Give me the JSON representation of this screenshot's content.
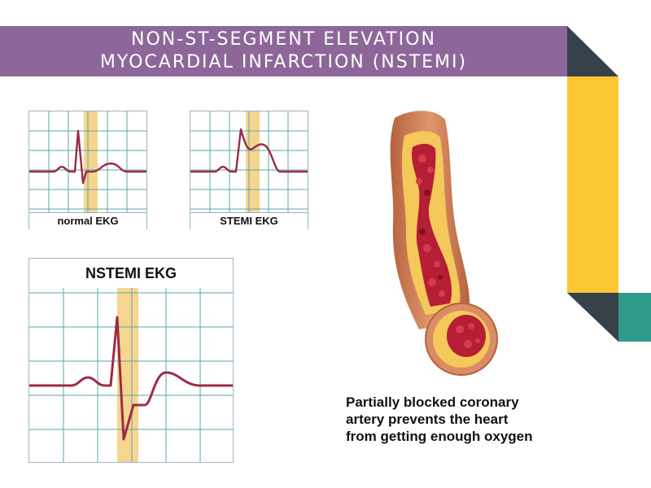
{
  "title": {
    "line1": "NON-ST-SEGMENT ELEVATION",
    "line2": "MYOCARDIAL INFARCTION (NSTEMI)"
  },
  "panels": {
    "normal": {
      "label": "normal EKG"
    },
    "stemi": {
      "label": "STEMI EKG"
    },
    "nstemi": {
      "label": "NSTEMI EKG"
    }
  },
  "caption": {
    "line1": "Partially blocked coronary",
    "line2": "artery prevents the heart",
    "line3": "from getting enough oxygen"
  },
  "colors": {
    "banner": "#8d679a",
    "grid": "#5aa7ae",
    "trace": "#9c2b46",
    "st_highlight": "#f6d58e",
    "deco_dark": "#36414a",
    "deco_yellow": "#fcc632",
    "deco_teal": "#2f9b8a"
  }
}
